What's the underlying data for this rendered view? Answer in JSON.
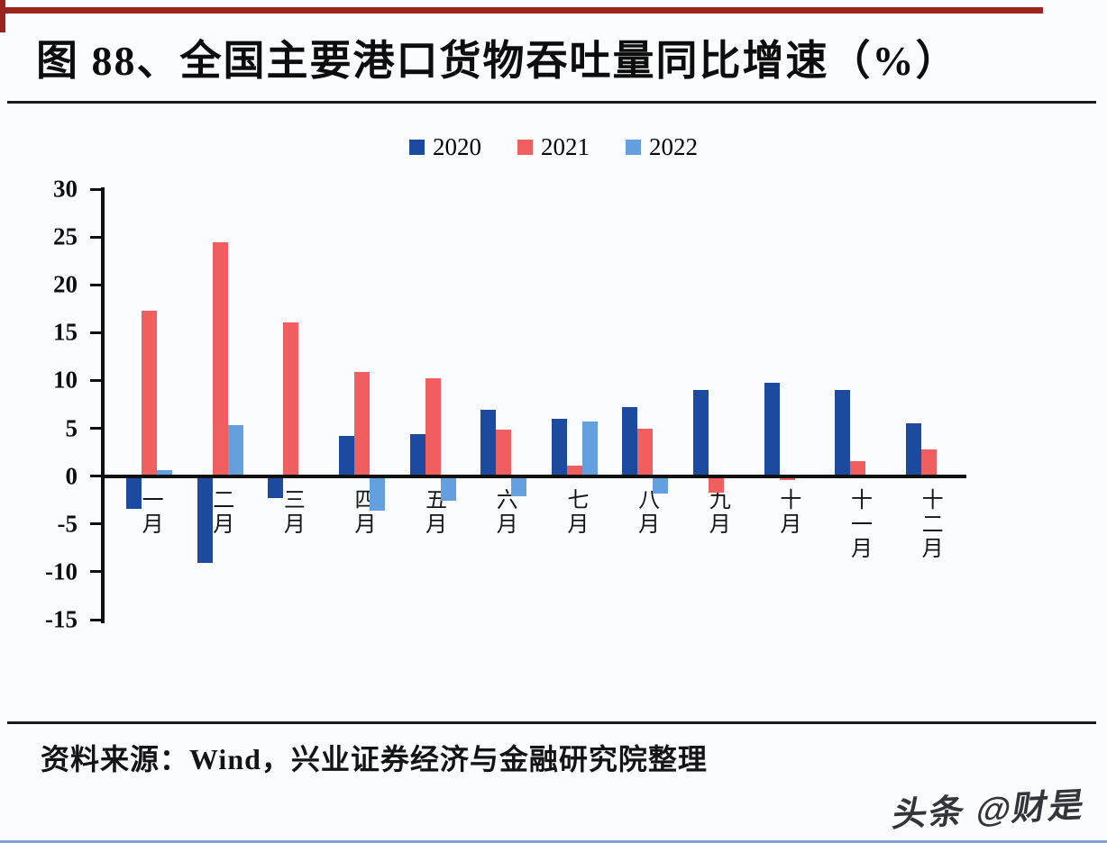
{
  "header": {
    "title": "图 88、全国主要港口货物吞吐量同比增速（%）"
  },
  "footer": {
    "source": "资料来源：Wind，兴业证券经济与金融研究院整理",
    "watermark": "头条 @财是"
  },
  "colors": {
    "accent_border": "#9a251f",
    "axis": "#101010",
    "bottom_line": "#7fa3d8"
  },
  "chart_data": {
    "type": "bar",
    "title": "全国主要港口货物吞吐量同比增速（%）",
    "xlabel": "",
    "ylabel": "",
    "categories": [
      "一月",
      "二月",
      "三月",
      "四月",
      "五月",
      "六月",
      "七月",
      "八月",
      "九月",
      "十月",
      "十一月",
      "十二月"
    ],
    "series": [
      {
        "name": "2020",
        "color": "#1b4a9e",
        "values": [
          -3.4,
          -9.1,
          -2.3,
          4.2,
          4.4,
          6.9,
          6.0,
          7.2,
          9.0,
          9.8,
          9.0,
          5.5
        ]
      },
      {
        "name": "2021",
        "color": "#ef5f5f",
        "values": [
          17.3,
          24.4,
          16.1,
          10.9,
          10.2,
          4.9,
          1.1,
          5.0,
          -1.7,
          -0.4,
          1.6,
          2.8
        ]
      },
      {
        "name": "2022",
        "color": "#64a0e0",
        "values": [
          0.6,
          5.3,
          null,
          -3.6,
          -2.6,
          -2.1,
          5.7,
          -1.8,
          null,
          null,
          null,
          null
        ]
      }
    ],
    "ylim": [
      -15,
      30
    ],
    "ytick_step": 5,
    "legend_position": "top",
    "grid": false
  }
}
